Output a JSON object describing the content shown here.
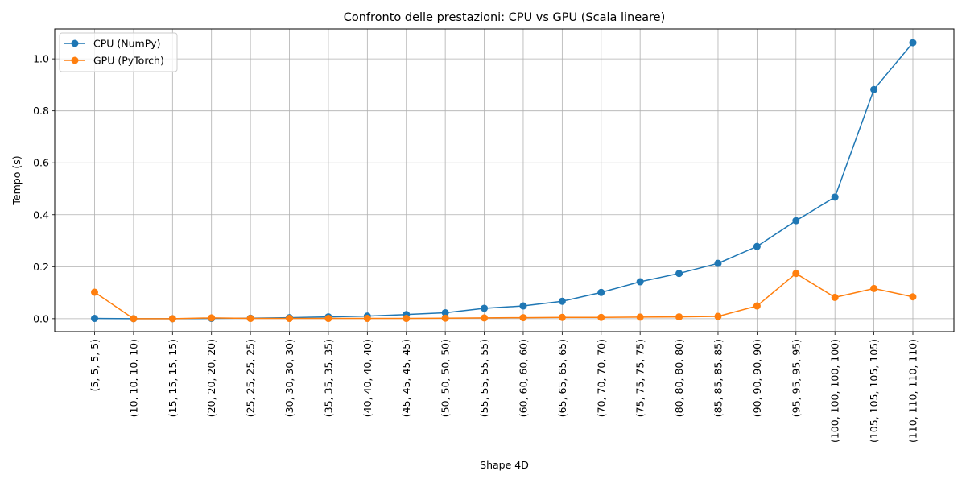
{
  "chart_data": {
    "type": "line",
    "title": "Confronto delle prestazioni: CPU vs GPU (Scala lineare)",
    "xlabel": "Shape 4D",
    "ylabel": "Tempo (s)",
    "categories": [
      "(5, 5, 5, 5)",
      "(10, 10, 10, 10)",
      "(15, 15, 15, 15)",
      "(20, 20, 20, 20)",
      "(25, 25, 25, 25)",
      "(30, 30, 30, 30)",
      "(35, 35, 35, 35)",
      "(40, 40, 40, 40)",
      "(45, 45, 45, 45)",
      "(50, 50, 50, 50)",
      "(55, 55, 55, 55)",
      "(60, 60, 60, 60)",
      "(65, 65, 65, 65)",
      "(70, 70, 70, 70)",
      "(75, 75, 75, 75)",
      "(80, 80, 80, 80)",
      "(85, 85, 85, 85)",
      "(90, 90, 90, 90)",
      "(95, 95, 95, 95)",
      "(100, 100, 100, 100)",
      "(105, 105, 105, 105)",
      "(110, 110, 110, 110)"
    ],
    "ylim": [
      -0.05,
      1.115
    ],
    "yticks": [
      0.0,
      0.2,
      0.4,
      0.6,
      0.8,
      1.0
    ],
    "ytick_labels": [
      "0.0",
      "0.2",
      "0.4",
      "0.6",
      "0.8",
      "1.0"
    ],
    "grid": true,
    "legend_position": "top-left",
    "series": [
      {
        "name": "CPU (NumPy)",
        "color": "#1f77b4",
        "values": [
          0.001,
          0.0,
          0.0,
          0.001,
          0.002,
          0.004,
          0.007,
          0.01,
          0.016,
          0.023,
          0.04,
          0.049,
          0.067,
          0.101,
          0.142,
          0.174,
          0.213,
          0.278,
          0.377,
          0.468,
          0.882,
          1.062
        ]
      },
      {
        "name": "GPU (PyTorch)",
        "color": "#ff7f0e",
        "values": [
          0.102,
          0.0,
          0.0,
          0.003,
          0.001,
          0.001,
          0.001,
          0.001,
          0.001,
          0.002,
          0.003,
          0.004,
          0.005,
          0.005,
          0.006,
          0.007,
          0.009,
          0.049,
          0.174,
          0.082,
          0.116,
          0.084
        ]
      }
    ]
  }
}
